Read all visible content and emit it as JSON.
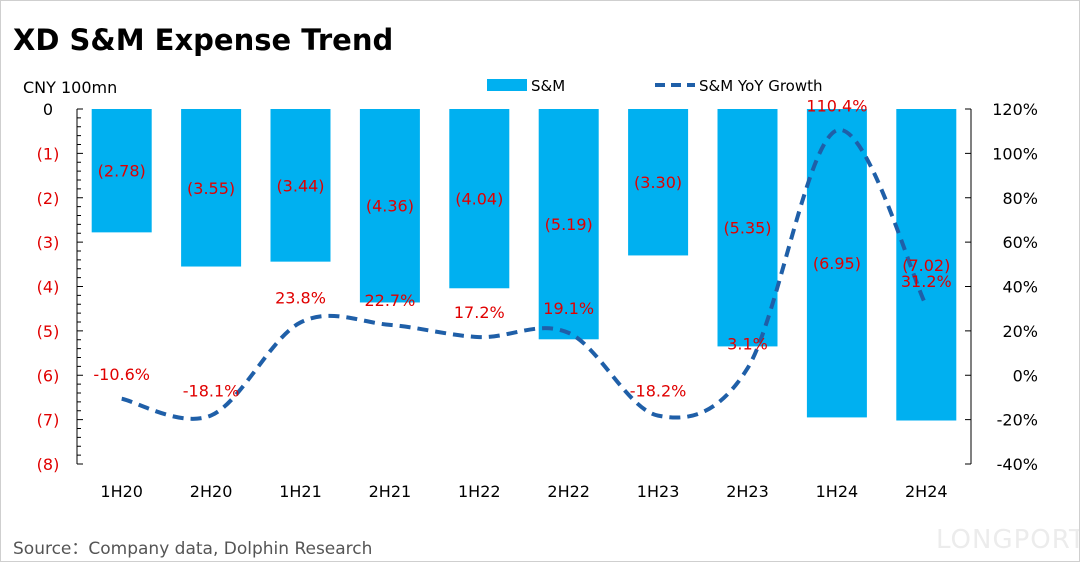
{
  "title": "XD S&M Expense Trend",
  "source": "Source：Company data, Dolphin Research",
  "watermark": "LONGPORT",
  "chart_data": {
    "type": "bar+line",
    "title": "XD S&M Expense Trend",
    "ylabel_left": "CNY 100mn",
    "categories": [
      "1H20",
      "2H20",
      "1H21",
      "2H21",
      "1H22",
      "2H22",
      "1H23",
      "2H23",
      "1H24",
      "2H24"
    ],
    "series": [
      {
        "name": "S&M",
        "type": "bar",
        "axis": "left",
        "color": "#00b0f0",
        "values": [
          -2.78,
          -3.55,
          -3.44,
          -4.36,
          -4.04,
          -5.19,
          -3.3,
          -5.35,
          -6.95,
          -7.02
        ],
        "labels": [
          "(2.78)",
          "(3.55)",
          "(3.44)",
          "(4.36)",
          "(4.04)",
          "(5.19)",
          "(3.30)",
          "(5.35)",
          "(6.95)",
          "(7.02)"
        ]
      },
      {
        "name": "S&M YoY Growth",
        "type": "line",
        "style": "dashed",
        "axis": "right",
        "color": "#1f5fa8",
        "values": [
          -10.6,
          -18.1,
          23.8,
          22.7,
          17.2,
          19.1,
          -18.2,
          3.1,
          110.4,
          31.2
        ],
        "labels": [
          "-10.6%",
          "-18.1%",
          "23.8%",
          "22.7%",
          "17.2%",
          "19.1%",
          "-18.2%",
          "3.1%",
          "110.4%",
          "31.2%"
        ]
      }
    ],
    "left_axis": {
      "range": [
        -8,
        0
      ],
      "ticks": [
        "0",
        "(1)",
        "(2)",
        "(3)",
        "(4)",
        "(5)",
        "(6)",
        "(7)",
        "(8)"
      ]
    },
    "right_axis": {
      "range": [
        -40,
        120
      ],
      "ticks": [
        "120%",
        "100%",
        "80%",
        "60%",
        "40%",
        "20%",
        "0%",
        "-20%",
        "-40%"
      ]
    },
    "label_color": "#e00000",
    "legend_placement": "top",
    "grid": false
  }
}
